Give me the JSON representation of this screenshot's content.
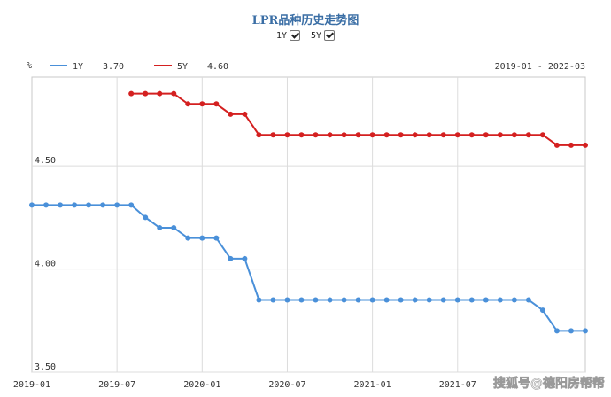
{
  "chart_data": {
    "type": "line",
    "title": "LPR品种历史走势图",
    "ylabel": "%",
    "date_range": "2019-01 - 2022-03",
    "ylim": [
      3.5,
      4.93
    ],
    "yticks": [
      "3.50",
      "4.00",
      "4.50"
    ],
    "ytick_values": [
      3.5,
      4.0,
      4.5
    ],
    "xticks": [
      "2019-01",
      "2019-07",
      "2020-01",
      "2020-07",
      "2021-01",
      "2021-07"
    ],
    "xtick_index": [
      0,
      6,
      12,
      18,
      24,
      30
    ],
    "legend_position": "top-left",
    "grid": true,
    "series": [
      {
        "name": "1Y",
        "latest": "3.70",
        "color": "#4a90d9",
        "values": [
          4.31,
          4.31,
          4.31,
          4.31,
          4.31,
          4.31,
          4.31,
          4.31,
          4.25,
          4.2,
          4.2,
          4.15,
          4.15,
          4.15,
          4.05,
          4.05,
          3.85,
          3.85,
          3.85,
          3.85,
          3.85,
          3.85,
          3.85,
          3.85,
          3.85,
          3.85,
          3.85,
          3.85,
          3.85,
          3.85,
          3.85,
          3.85,
          3.85,
          3.85,
          3.85,
          3.85,
          3.8,
          3.7,
          3.7,
          3.7
        ]
      },
      {
        "name": "5Y",
        "latest": "4.60",
        "color": "#d42020",
        "values": [
          null,
          null,
          null,
          null,
          null,
          null,
          null,
          4.85,
          4.85,
          4.85,
          4.85,
          4.8,
          4.8,
          4.8,
          4.75,
          4.75,
          4.65,
          4.65,
          4.65,
          4.65,
          4.65,
          4.65,
          4.65,
          4.65,
          4.65,
          4.65,
          4.65,
          4.65,
          4.65,
          4.65,
          4.65,
          4.65,
          4.65,
          4.65,
          4.65,
          4.65,
          4.65,
          4.6,
          4.6,
          4.6
        ]
      }
    ]
  },
  "toggles": [
    {
      "label": "1Y",
      "checked": true
    },
    {
      "label": "5Y",
      "checked": true
    }
  ],
  "watermark": "搜狐号@德阳房帮帮"
}
